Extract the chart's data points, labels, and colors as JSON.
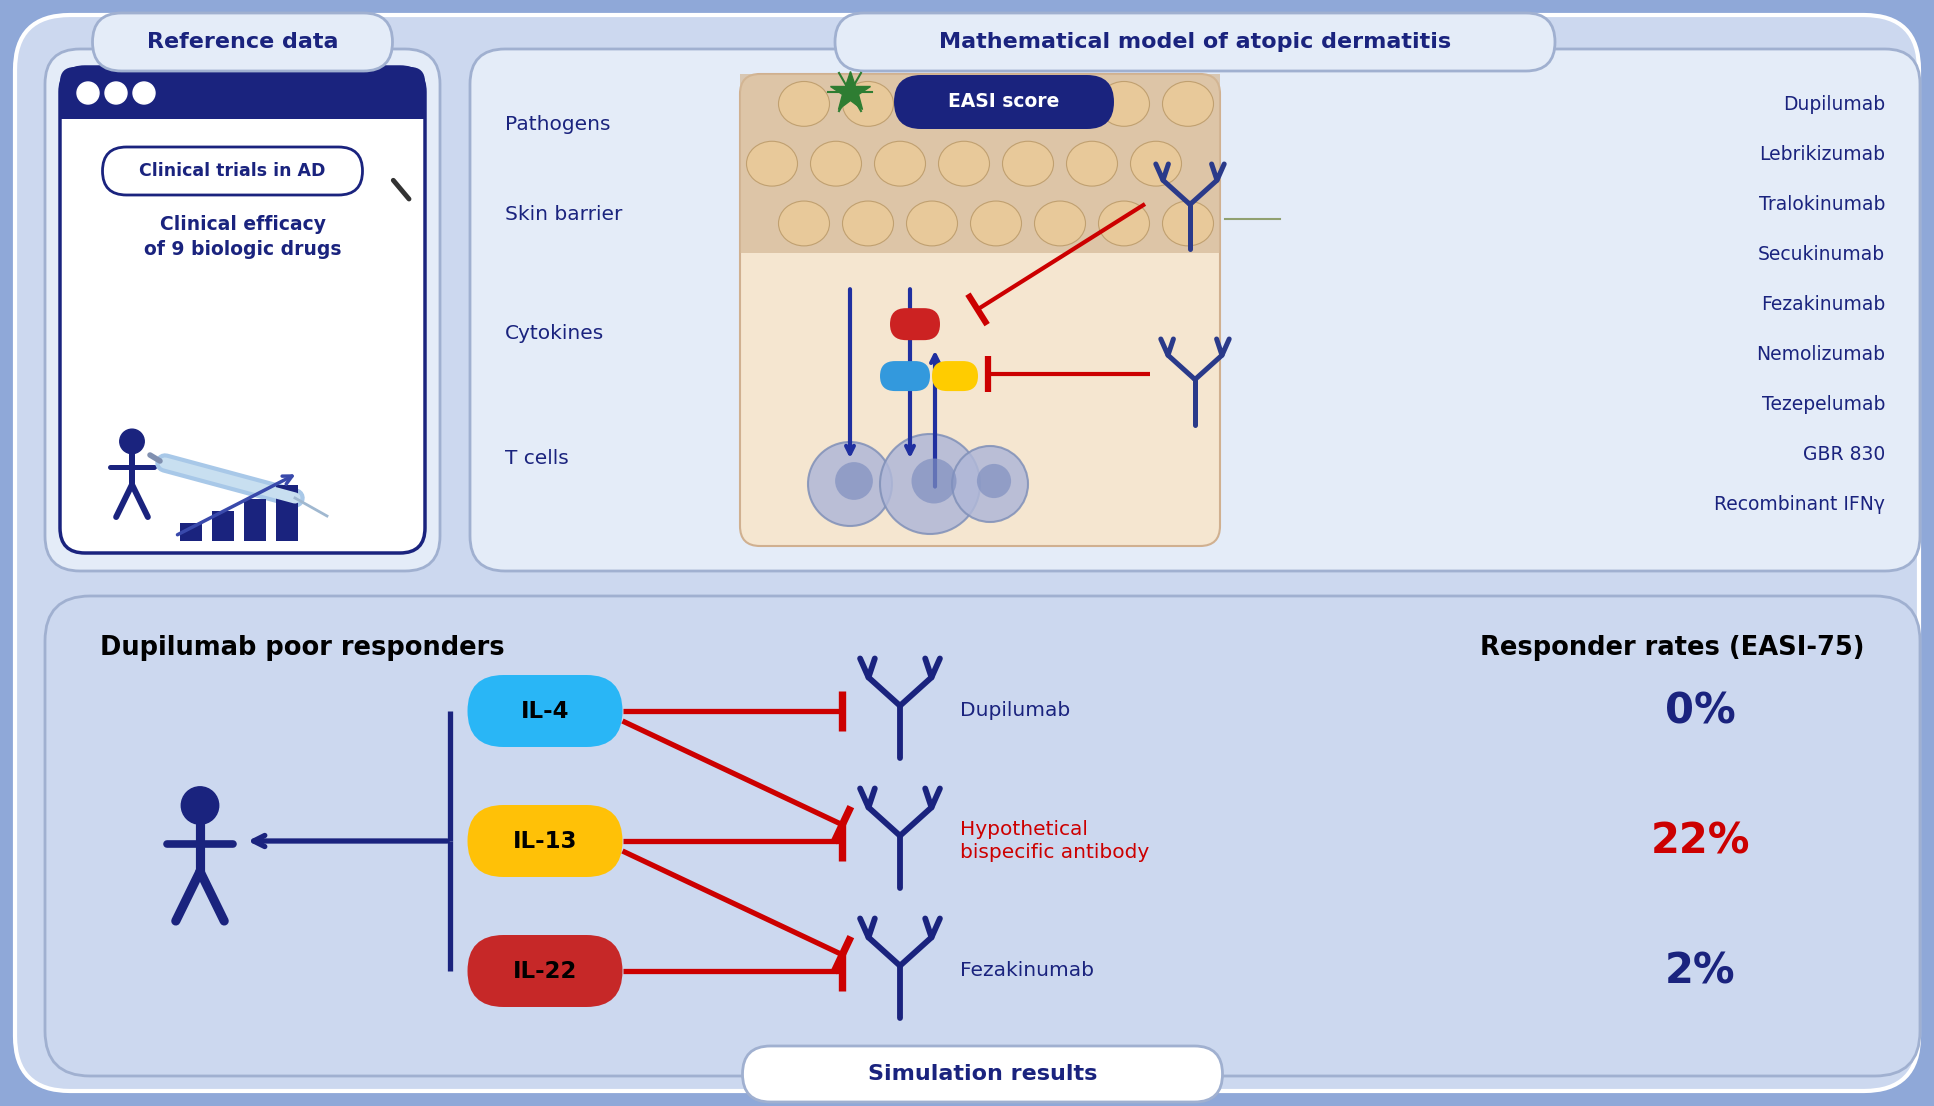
{
  "bg_color": "#8fa8d8",
  "panel_bg": "#ccd8ef",
  "panel_bg_light": "#e4ecf8",
  "panel_white": "#f0f4fc",
  "dark_blue": "#1a237e",
  "mid_blue": "#3949ab",
  "navy": "#0d1b6e",
  "red": "#cc0000",
  "title_ref": "Reference data",
  "title_math": "Mathematical model of atopic dermatitis",
  "title_sim": "Simulation results",
  "title_poor": "Dupilumab poor responders",
  "title_responder": "Responder rates (EASI-75)",
  "drugs": [
    "Dupilumab",
    "Lebrikizumab",
    "Tralokinumab",
    "Secukinumab",
    "Fezakinumab",
    "Nemolizumab",
    "Tezepelumab",
    "GBR 830",
    "Recombinant IFNγ"
  ],
  "model_labels_left": [
    "Pathogens",
    "Skin barrier",
    "Cytokines",
    "T cells"
  ],
  "il_labels": [
    "IL-4",
    "IL-13",
    "IL-22"
  ],
  "il_colors": [
    "#29b6f6",
    "#ffc107",
    "#c62828"
  ],
  "antibody_labels": [
    "Dupilumab",
    "Hypothetical\nbispecific antibody",
    "Fezakinumab"
  ],
  "antibody_colors": [
    "#1a237e",
    "#cc0000",
    "#1a237e"
  ],
  "responder_rates": [
    "0%",
    "22%",
    "2%"
  ],
  "responder_colors": [
    "#1a237e",
    "#cc0000",
    "#1a237e"
  ],
  "easi_label": "EASI score",
  "skin_top_color": "#d4b896",
  "skin_cell_color": "#e8c99a",
  "skin_body_color": "#f5e6d0",
  "tcell_color": "#b0b8d8",
  "tcell_inner": "#8090c0"
}
